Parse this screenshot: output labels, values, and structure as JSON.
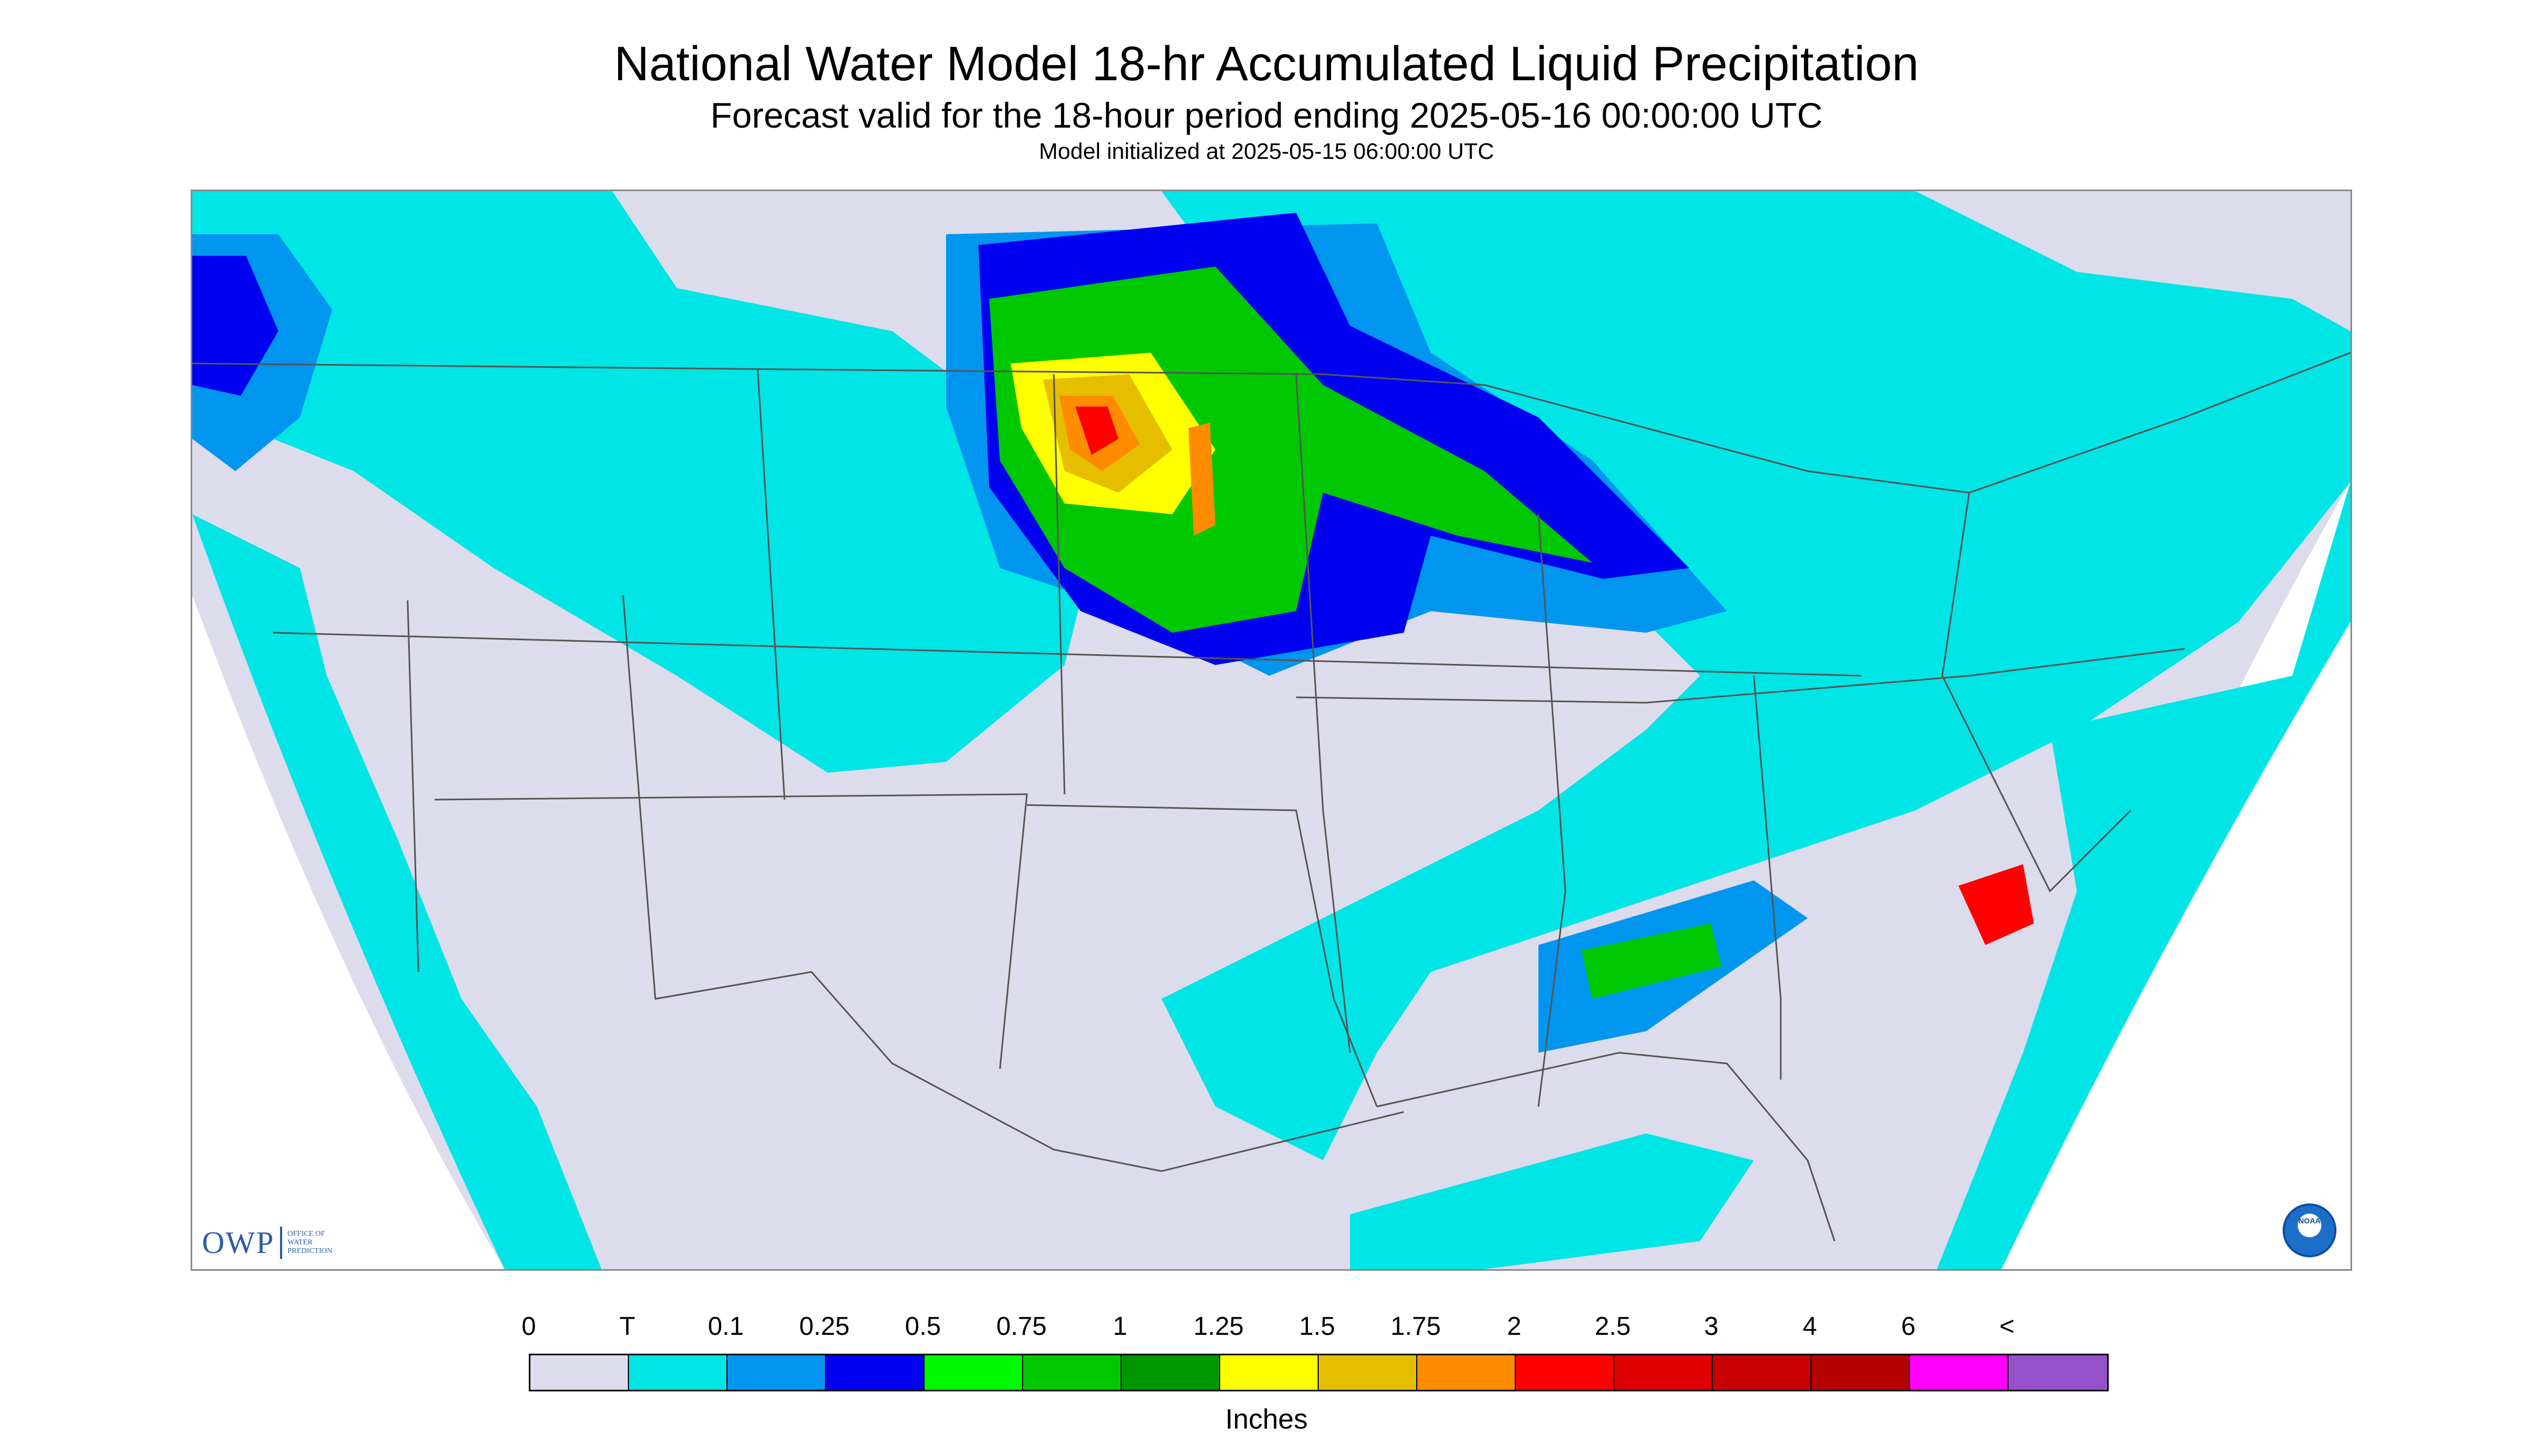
{
  "header": {
    "title": "National Water Model 18-hr Accumulated Liquid Precipitation",
    "subtitle": "Forecast valid for the 18-hour period ending 2025-05-16 00:00:00 UTC",
    "init": "Model initialized at 2025-05-15 06:00:00 UTC"
  },
  "logos": {
    "owp_letters": "OWP",
    "owp_text": [
      "OFFICE OF",
      "WATER",
      "PREDICTION"
    ],
    "noaa_text": "NOAA"
  },
  "colors": {
    "background_no_data": "#ffffff",
    "map_zero": "#dcdcec",
    "outline": "#555555"
  },
  "legend": {
    "unit": "Inches",
    "labels": [
      "0",
      "T",
      "0.1",
      "0.25",
      "0.5",
      "0.75",
      "1",
      "1.25",
      "1.5",
      "1.75",
      "2",
      "2.5",
      "3",
      "4",
      "6",
      "<"
    ],
    "colors": [
      "#dcdcec",
      "#00e5e5",
      "#0096f0",
      "#0000f0",
      "#00fa00",
      "#00c800",
      "#009600",
      "#ffff00",
      "#e6be00",
      "#ff8c00",
      "#ff0000",
      "#dc0000",
      "#c80000",
      "#b40000",
      "#ff00ff",
      "#9650c8"
    ]
  }
}
